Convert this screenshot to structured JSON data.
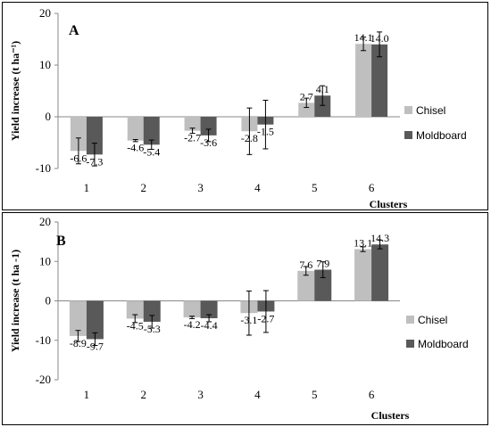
{
  "chart_data": [
    {
      "type": "bar",
      "panel_label": "A",
      "categories": [
        "1",
        "2",
        "3",
        "4",
        "5",
        "6"
      ],
      "series": [
        {
          "name": "Chisel",
          "color": "#bfbfbf",
          "values": [
            -6.6,
            -4.6,
            -2.7,
            -2.8,
            2.7,
            14.1
          ],
          "error": [
            2.5,
            0.2,
            0.5,
            4.5,
            0.9,
            1.3
          ],
          "labels": [
            "-6.6",
            "-4.6",
            "-2.7",
            "-2.8",
            "2.7",
            "14.1"
          ]
        },
        {
          "name": "Moldboard",
          "color": "#595959",
          "values": [
            -7.3,
            -5.4,
            -3.6,
            -1.5,
            4.1,
            14.0
          ],
          "error": [
            2.2,
            0.9,
            1.2,
            4.7,
            1.9,
            2.4
          ],
          "labels": [
            "-7.3",
            "-5.4",
            "-3.6",
            "-1.5",
            "4.1",
            "14.0"
          ]
        }
      ],
      "xlabel": "Clusters",
      "ylabel": "Yield increase (t ha⁻¹)",
      "ylim": [
        -10,
        20
      ],
      "yticks": [
        -10,
        0,
        10,
        20
      ],
      "legend_position": "right"
    },
    {
      "type": "bar",
      "panel_label": "B",
      "categories": [
        "1",
        "2",
        "3",
        "4",
        "5",
        "6"
      ],
      "series": [
        {
          "name": "Chisel",
          "color": "#bfbfbf",
          "values": [
            -8.9,
            -4.5,
            -4.2,
            -3.1,
            7.6,
            13.1
          ],
          "error": [
            1.4,
            1.0,
            0.3,
            5.6,
            1.1,
            0.6
          ],
          "labels": [
            "-8.9",
            "-4.5",
            "-4.2",
            "-3.1",
            "7.6",
            "13.1"
          ]
        },
        {
          "name": "Moldboard",
          "color": "#595959",
          "values": [
            -9.7,
            -5.3,
            -4.4,
            -2.7,
            7.9,
            14.3
          ],
          "error": [
            1.6,
            1.6,
            0.9,
            5.3,
            2.0,
            1.1
          ],
          "labels": [
            "-9.7",
            "-5.3",
            "-4.4",
            "-2.7",
            "7.9",
            "14.3"
          ]
        }
      ],
      "xlabel": "Clusters",
      "ylabel": "Yield increase (t  ha -1)",
      "ylim": [
        -20,
        20
      ],
      "yticks": [
        -20,
        -10,
        0,
        10,
        20
      ],
      "legend_position": "right"
    }
  ]
}
